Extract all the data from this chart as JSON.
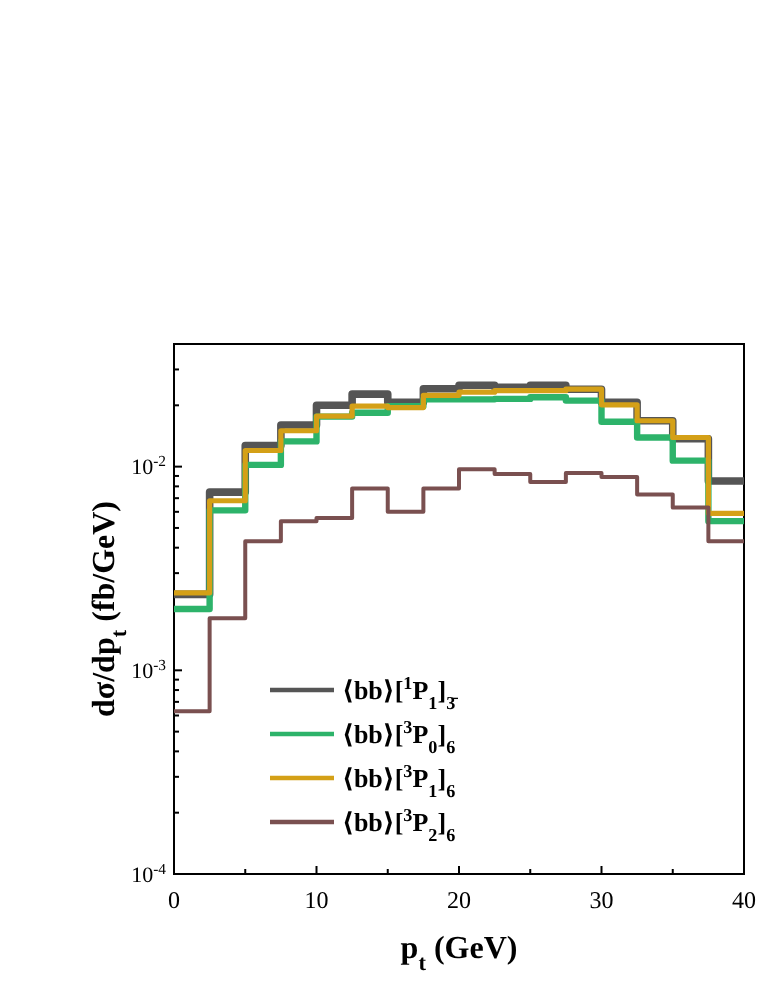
{
  "chart_data": {
    "type": "step",
    "xlabel": "p$_{t}$ (GeV)",
    "ylabel": "dσ/dp$_{t}$ (fb/GeV)",
    "log": true,
    "legend": "bottom left",
    "x": [
      0,
      2.5,
      5,
      7.5,
      10,
      12.5,
      15,
      17.5,
      20,
      22.5,
      25,
      27.5,
      30,
      32.5,
      35,
      37.5,
      40
    ],
    "xlim": [
      0,
      40
    ],
    "xticks": [
      0,
      {
        "value": 5,
        "label": null
      },
      10,
      {
        "value": 15,
        "label": null
      },
      20,
      {
        "value": 25,
        "label": null
      },
      30,
      {
        "value": 35,
        "label": null
      },
      40
    ],
    "ylim": [
      0.0001,
      0.04
    ],
    "yticks": [
      {
        "value": 0.0001,
        "label": "10$^{-4}$"
      },
      {
        "value": 0.0002,
        "label": null
      },
      {
        "value": 0.0003,
        "label": null
      },
      {
        "value": 0.0004,
        "label": null
      },
      {
        "value": 0.0005,
        "label": null
      },
      {
        "value": 0.0006,
        "label": null
      },
      {
        "value": 0.0007,
        "label": null
      },
      {
        "value": 0.0008,
        "label": null
      },
      {
        "value": 0.0009,
        "label": null
      },
      {
        "value": 0.001,
        "label": "10$^{-3}$"
      },
      {
        "value": 0.002,
        "label": null
      },
      {
        "value": 0.003,
        "label": null
      },
      {
        "value": 0.004,
        "label": null
      },
      {
        "value": 0.005,
        "label": null
      },
      {
        "value": 0.006,
        "label": null
      },
      {
        "value": 0.007,
        "label": null
      },
      {
        "value": 0.008,
        "label": null
      },
      {
        "value": 0.009,
        "label": null
      },
      {
        "value": 0.01,
        "label": "10$^{-2}$"
      },
      {
        "value": 0.02,
        "label": null
      },
      {
        "value": 0.03,
        "label": null
      },
      {
        "value": 0.04,
        "label": null
      }
    ],
    "series": [
      {
        "name": "⟨bb⟩[$^{1}$P$_{1}$]$_{3̄}$",
        "color": "#555555",
        "values": [
          0.00236,
          0.0075,
          0.0127,
          0.016,
          0.02,
          0.0227,
          0.0207,
          0.0241,
          0.0251,
          0.0245,
          0.0251,
          0.024,
          0.0207,
          0.0168,
          0.0137,
          0.0085,
          0.0085
        ]
      },
      {
        "name": "⟨bb⟩[$^{3}$P$_{0}$]$_{6}$",
        "color": "#2db36a",
        "values": [
          0.002,
          0.0061,
          0.0102,
          0.0133,
          0.0176,
          0.0184,
          0.0198,
          0.0214,
          0.0214,
          0.0215,
          0.0219,
          0.0211,
          0.0166,
          0.0139,
          0.0107,
          0.0054,
          0.0054
        ]
      },
      {
        "name": "⟨bb⟩[$^{3}$P$_{1}$]$_{6}$",
        "color": "#d4a017",
        "values": [
          0.0024,
          0.0068,
          0.012,
          0.015,
          0.0177,
          0.0198,
          0.0195,
          0.0224,
          0.0232,
          0.0236,
          0.0236,
          0.024,
          0.0201,
          0.0168,
          0.0139,
          0.0059,
          0.0059
        ]
      },
      {
        "name": "⟨bb⟩[$^{3}$P$_{2}$]$_{6}$",
        "color": "#7a5050",
        "values": [
          0.00063,
          0.0018,
          0.0043,
          0.0054,
          0.0056,
          0.0078,
          0.006,
          0.0078,
          0.0097,
          0.0092,
          0.0084,
          0.0093,
          0.0089,
          0.0073,
          0.0063,
          0.0043,
          0.0043
        ]
      }
    ]
  }
}
